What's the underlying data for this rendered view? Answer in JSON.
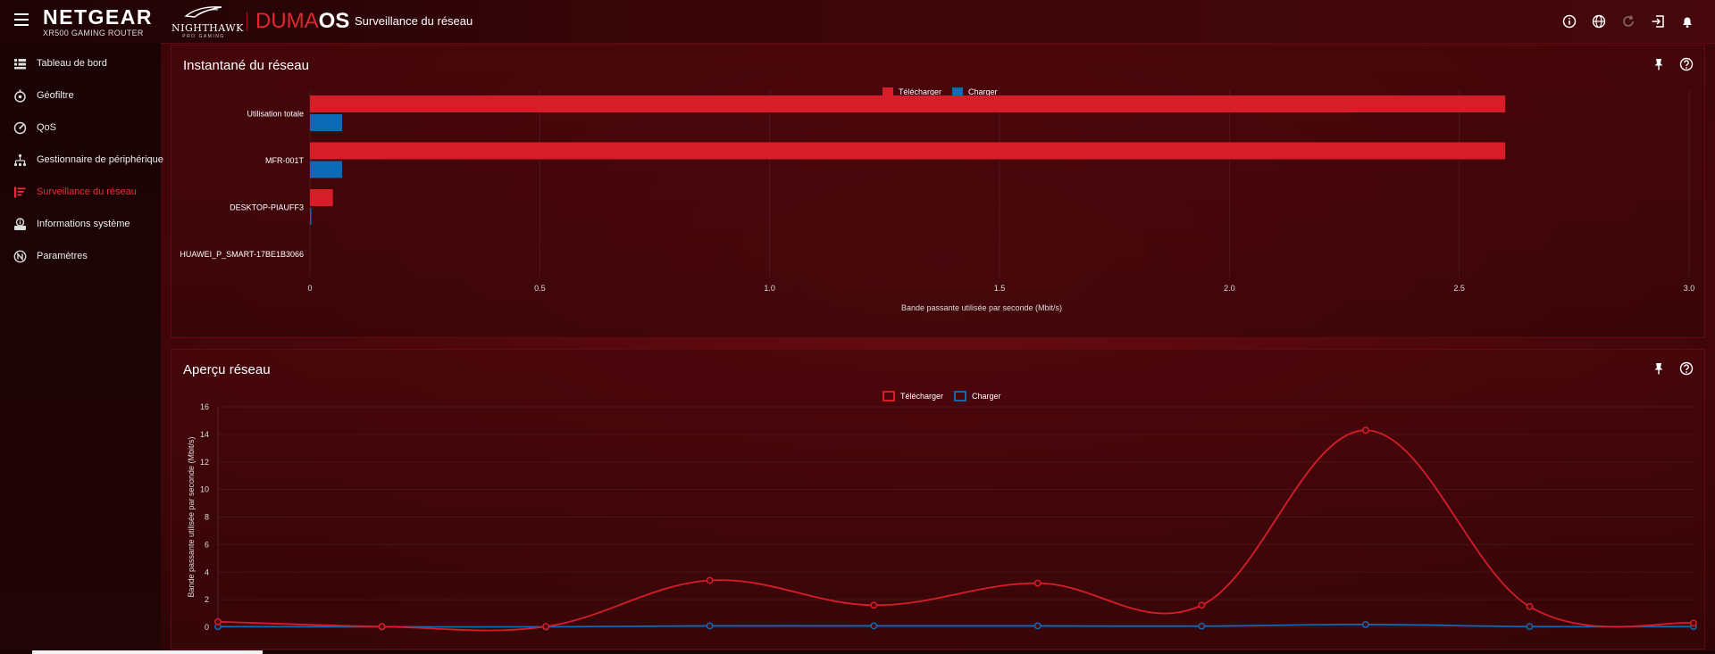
{
  "header": {
    "brand": "NETGEAR",
    "brand_sub": "XR500 GAMING ROUTER",
    "nighthawk": "NIGHTHAWK",
    "nighthawk_sub": "PRO GAMING",
    "duma_a": "DUMA",
    "duma_b": "OS",
    "page_title": "Surveillance du réseau",
    "icons": [
      "info-icon",
      "globe-icon",
      "refresh-icon",
      "logout-icon",
      "bell-icon"
    ]
  },
  "sidebar": {
    "items": [
      {
        "label": "Tableau de bord",
        "icon": "dashboard-icon",
        "active": false
      },
      {
        "label": "Géofiltre",
        "icon": "geofilter-icon",
        "active": false
      },
      {
        "label": "QoS",
        "icon": "qos-gauge-icon",
        "active": false
      },
      {
        "label": "Gestionnaire de périphérique",
        "icon": "device-tree-icon",
        "active": false
      },
      {
        "label": "Surveillance du réseau",
        "icon": "network-monitor-icon",
        "active": true
      },
      {
        "label": "Informations système",
        "icon": "system-info-icon",
        "active": false
      },
      {
        "label": "Paramètres",
        "icon": "settings-n-icon",
        "active": false
      }
    ]
  },
  "snapshot": {
    "title": "Instantané du réseau",
    "legend": {
      "download": "Télécharger",
      "upload": "Charger"
    }
  },
  "overview": {
    "title": "Aperçu réseau",
    "legend": {
      "download": "Télécharger",
      "upload": "Charger"
    }
  },
  "colors": {
    "download": "#d71d28",
    "upload": "#0d6ab4",
    "accent": "#e0262f"
  },
  "chart_data": [
    {
      "type": "bar",
      "orientation": "horizontal",
      "categories": [
        "Utilisation totale",
        "MFR-001T",
        "DESKTOP-PIAUFF3",
        "HUAWEI_P_SMART-17BE1B3066"
      ],
      "series": [
        {
          "name": "Télécharger",
          "values": [
            2.6,
            2.6,
            0.05,
            0
          ]
        },
        {
          "name": "Charger",
          "values": [
            0.07,
            0.07,
            0.003,
            0
          ]
        }
      ],
      "xlabel": "Bande passante utilisée par seconde (Mbit/s)",
      "xlim": [
        0,
        3.0
      ],
      "xticks": [
        "0",
        "0.5",
        "1.0",
        "1.5",
        "2.0",
        "2.5",
        "3.0"
      ],
      "legend": "top-center",
      "grid": true
    },
    {
      "type": "line",
      "x": [
        1,
        2,
        3,
        4,
        5,
        6,
        7,
        8,
        9,
        10
      ],
      "series": [
        {
          "name": "Télécharger",
          "values": [
            0.4,
            0.05,
            0.05,
            3.4,
            1.6,
            3.2,
            1.6,
            14.3,
            1.5,
            0.3
          ]
        },
        {
          "name": "Charger",
          "values": [
            0.05,
            0.03,
            0.03,
            0.1,
            0.1,
            0.1,
            0.08,
            0.2,
            0.05,
            0.05
          ]
        }
      ],
      "ylabel": "Bande passante utilisée par seconde (Mbit/s)",
      "ylim": [
        0,
        16
      ],
      "yticks": [
        "0",
        "2",
        "4",
        "6",
        "8",
        "10",
        "12",
        "14",
        "16"
      ],
      "legend": "top-center",
      "grid": true
    }
  ]
}
